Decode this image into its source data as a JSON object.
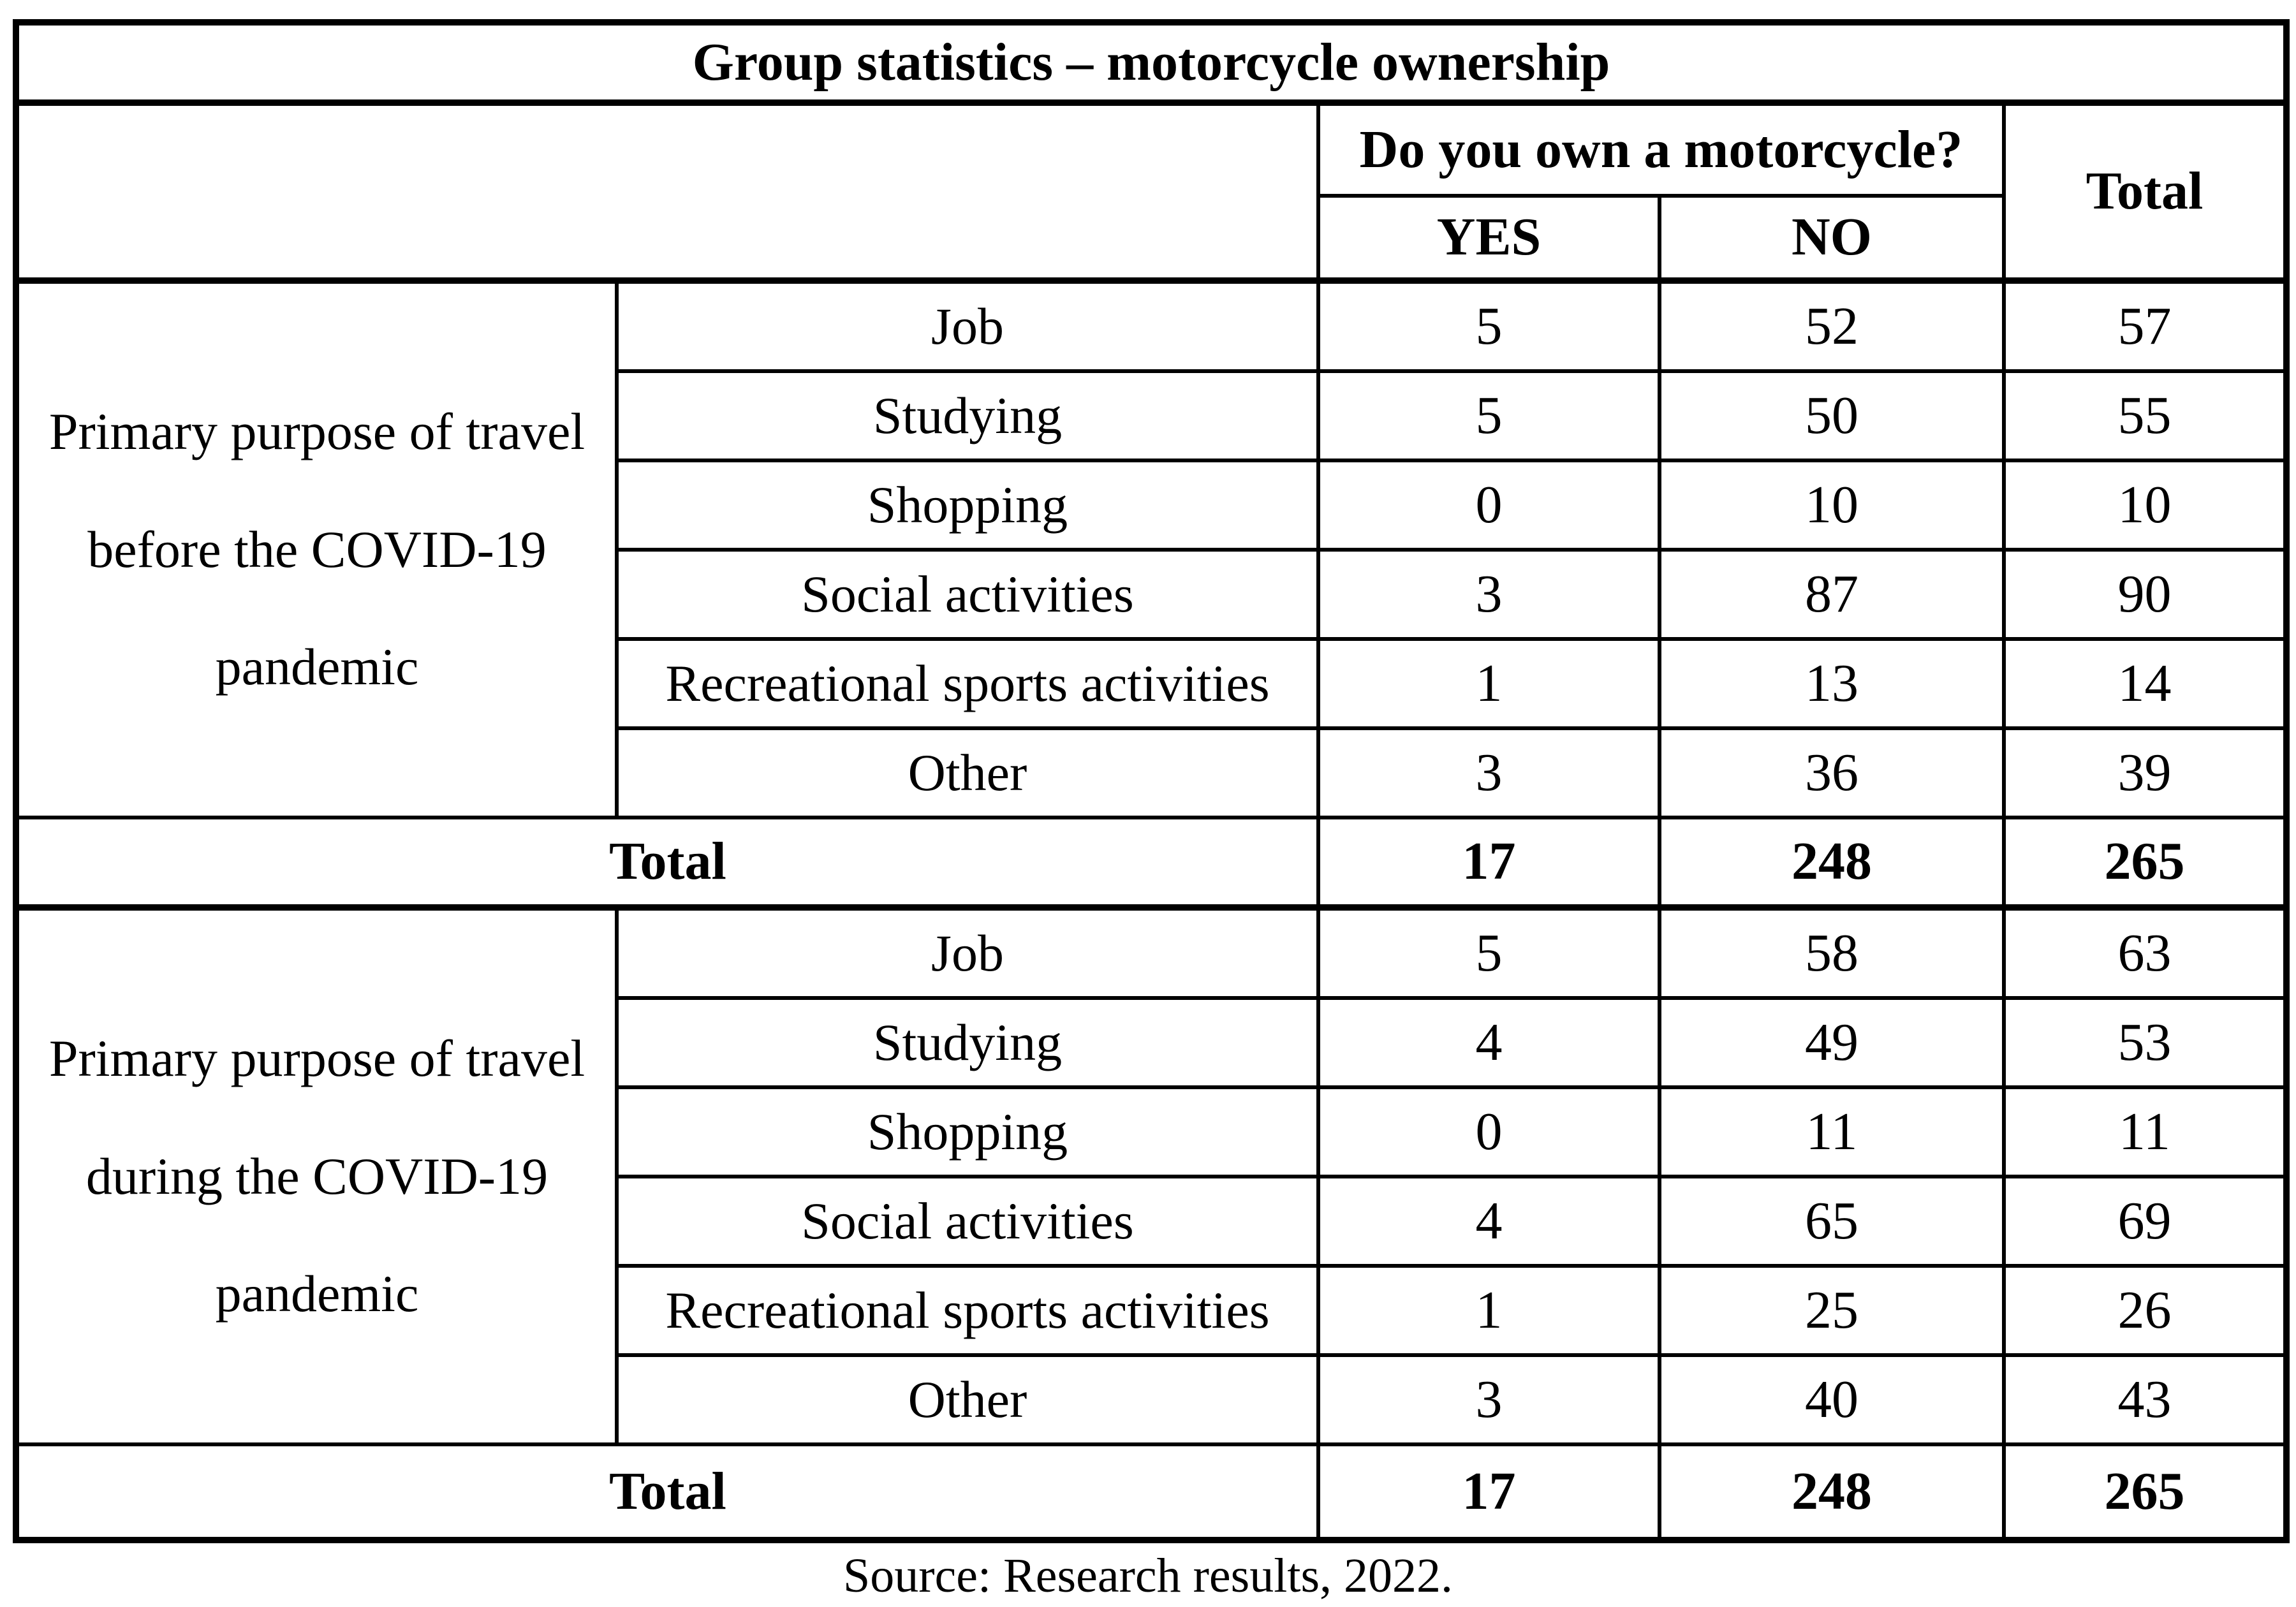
{
  "table": {
    "title": "Group statistics – motorcycle ownership",
    "header": {
      "question": "Do you own a motorcycle?",
      "yes": "YES",
      "no": "NO",
      "total": "Total"
    },
    "sections": [
      {
        "group_label": "Primary purpose of travel before the COVID-19 pandemic",
        "rows": [
          {
            "label": "Job",
            "yes": "5",
            "no": "52",
            "total": "57"
          },
          {
            "label": "Studying",
            "yes": "5",
            "no": "50",
            "total": "55"
          },
          {
            "label": "Shopping",
            "yes": "0",
            "no": "10",
            "total": "10"
          },
          {
            "label": "Social activities",
            "yes": "3",
            "no": "87",
            "total": "90"
          },
          {
            "label": "Recreational sports activities",
            "yes": "1",
            "no": "13",
            "total": "14"
          },
          {
            "label": "Other",
            "yes": "3",
            "no": "36",
            "total": "39"
          }
        ],
        "total": {
          "label": "Total",
          "yes": "17",
          "no": "248",
          "total": "265"
        }
      },
      {
        "group_label": "Primary purpose of travel during the COVID-19 pandemic",
        "rows": [
          {
            "label": "Job",
            "yes": "5",
            "no": "58",
            "total": "63"
          },
          {
            "label": "Studying",
            "yes": "4",
            "no": "49",
            "total": "53"
          },
          {
            "label": "Shopping",
            "yes": "0",
            "no": "11",
            "total": "11"
          },
          {
            "label": "Social activities",
            "yes": "4",
            "no": "65",
            "total": "69"
          },
          {
            "label": "Recreational sports activities",
            "yes": "1",
            "no": "25",
            "total": "26"
          },
          {
            "label": "Other",
            "yes": "3",
            "no": "40",
            "total": "43"
          }
        ],
        "total": {
          "label": "Total",
          "yes": "17",
          "no": "248",
          "total": "265"
        }
      }
    ]
  },
  "footer": {
    "source": "Source: Research results, 2022."
  }
}
